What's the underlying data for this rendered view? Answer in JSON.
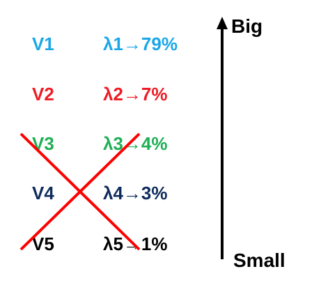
{
  "rows": [
    {
      "v": "V1",
      "lambda": "λ1",
      "arrow": "→",
      "pct": "79%",
      "color": "#1aa7e8"
    },
    {
      "v": "V2",
      "lambda": "λ2",
      "arrow": "→",
      "pct": "7%",
      "color": "#ee1c25"
    },
    {
      "v": "V3",
      "lambda": "λ3",
      "arrow": "→",
      "pct": "4%",
      "color": "#1faf54"
    },
    {
      "v": "V4",
      "lambda": "λ4",
      "arrow": "→",
      "pct": "3%",
      "color": "#0e2b5c"
    },
    {
      "v": "V5",
      "lambda": "λ5",
      "arrow": "→",
      "pct": "1%",
      "color": "#000000"
    }
  ],
  "scale": {
    "top_label": "Big",
    "bottom_label": "Small"
  },
  "cross_color": "#ff0000"
}
